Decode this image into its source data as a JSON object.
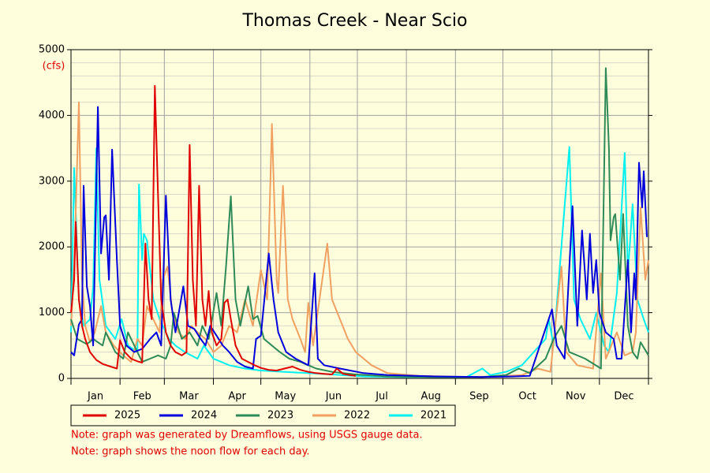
{
  "chart_data": {
    "type": "line",
    "title": "Thomas Creek - Near Scio",
    "y_unit": "(cfs)",
    "xlim": [
      0,
      365
    ],
    "xticks": [
      {
        "value": 15.5,
        "label": "Jan"
      },
      {
        "value": 45,
        "label": "Feb"
      },
      {
        "value": 74.5,
        "label": "Mar"
      },
      {
        "value": 105,
        "label": "Apr"
      },
      {
        "value": 135.5,
        "label": "May"
      },
      {
        "value": 166,
        "label": "Jun"
      },
      {
        "value": 196.5,
        "label": "Jul"
      },
      {
        "value": 227.5,
        "label": "Aug"
      },
      {
        "value": 258,
        "label": "Sep"
      },
      {
        "value": 288.5,
        "label": "Oct"
      },
      {
        "value": 319,
        "label": "Nov"
      },
      {
        "value": 349.5,
        "label": "Dec"
      }
    ],
    "x_gridlines": [
      0,
      31,
      59,
      90,
      120,
      151,
      181,
      212,
      243,
      273,
      304,
      334,
      365
    ],
    "ylim": [
      0,
      5000
    ],
    "yticks": [
      0,
      1000,
      2000,
      3000,
      4000,
      5000
    ],
    "y_minor_ticks": [
      200,
      400,
      600,
      800,
      1200,
      1400,
      1600,
      1800,
      2200,
      2400,
      2600,
      2800,
      3200,
      3400,
      3600,
      3800,
      4200,
      4400,
      4600,
      4800
    ],
    "grid": true,
    "series": [
      {
        "name": "2025",
        "color": "#e00000",
        "x": [
          0,
          2,
          3,
          5,
          7,
          9,
          12,
          16,
          20,
          25,
          29,
          31,
          34,
          38,
          42,
          45,
          47,
          49,
          51,
          53,
          55,
          57,
          60,
          63,
          66,
          70,
          73,
          75,
          77,
          79,
          81,
          83,
          85,
          87,
          89,
          92,
          95,
          97,
          99,
          101,
          104,
          108,
          112,
          116,
          120,
          125,
          130,
          135,
          140,
          145,
          150,
          155,
          160,
          165,
          168,
          172,
          176,
          180
        ],
        "values": [
          1000,
          1500,
          2380,
          1200,
          800,
          600,
          400,
          280,
          220,
          180,
          150,
          580,
          400,
          300,
          260,
          240,
          2050,
          1200,
          900,
          4450,
          2800,
          1200,
          700,
          500,
          400,
          350,
          400,
          3550,
          1500,
          800,
          2930,
          1200,
          800,
          1330,
          700,
          500,
          600,
          1150,
          1200,
          900,
          500,
          300,
          250,
          200,
          160,
          130,
          120,
          150,
          180,
          130,
          100,
          80,
          70,
          60,
          150,
          70,
          50,
          40
        ]
      },
      {
        "name": "2024",
        "color": "#0000dd",
        "x": [
          0,
          2,
          5,
          7,
          8,
          10,
          12,
          14,
          17,
          19,
          21,
          22,
          24,
          26,
          29,
          31,
          35,
          40,
          45,
          50,
          54,
          57,
          60,
          63,
          66,
          71,
          74,
          78,
          82,
          85,
          88,
          92,
          96,
          100,
          105,
          110,
          115,
          117,
          120,
          125,
          128,
          131,
          136,
          142,
          150,
          154,
          156,
          160,
          170,
          185,
          200,
          230,
          260,
          280,
          290,
          304,
          307,
          312,
          317,
          320,
          323,
          326,
          328,
          330,
          332,
          334,
          338,
          343,
          345,
          348,
          352,
          354,
          356,
          357,
          359,
          361,
          362,
          364
        ],
        "values": [
          400,
          350,
          820,
          900,
          2930,
          1400,
          1100,
          500,
          4130,
          1900,
          2450,
          2480,
          1500,
          3480,
          1800,
          800,
          500,
          400,
          450,
          600,
          700,
          500,
          2780,
          1200,
          700,
          1400,
          800,
          750,
          600,
          500,
          800,
          650,
          500,
          400,
          250,
          180,
          150,
          600,
          650,
          1900,
          1200,
          700,
          400,
          300,
          200,
          1600,
          300,
          200,
          150,
          80,
          50,
          30,
          20,
          30,
          40,
          1050,
          500,
          300,
          2620,
          800,
          2250,
          1200,
          2200,
          1300,
          1800,
          1000,
          700,
          600,
          300,
          300,
          1800,
          700,
          1600,
          1200,
          3280,
          2600,
          3150,
          2150
        ]
      },
      {
        "name": "2023",
        "color": "#2e8b57",
        "x": [
          0,
          4,
          10,
          14,
          20,
          22,
          28,
          33,
          36,
          40,
          45,
          50,
          55,
          60,
          63,
          65,
          70,
          75,
          80,
          83,
          87,
          92,
          95,
          98,
          101,
          104,
          107,
          112,
          115,
          118,
          122,
          127,
          132,
          138,
          145,
          155,
          165,
          180,
          200,
          230,
          260,
          275,
          283,
          290,
          300,
          305,
          310,
          315,
          325,
          335,
          338,
          340,
          341,
          343,
          344,
          347,
          349,
          352,
          355,
          358,
          360,
          365
        ],
        "values": [
          900,
          600,
          520,
          600,
          500,
          700,
          400,
          300,
          700,
          500,
          250,
          300,
          350,
          300,
          500,
          1000,
          600,
          700,
          500,
          800,
          600,
          1300,
          800,
          1700,
          2770,
          1200,
          800,
          1400,
          900,
          950,
          600,
          500,
          400,
          300,
          250,
          150,
          100,
          60,
          30,
          20,
          20,
          50,
          150,
          80,
          300,
          600,
          800,
          400,
          300,
          150,
          4720,
          3500,
          2100,
          2450,
          2500,
          1500,
          2500,
          800,
          400,
          300,
          550,
          350
        ]
      },
      {
        "name": "2022",
        "color": "#f0a060",
        "x": [
          0,
          2,
          5,
          7,
          9,
          12,
          15,
          19,
          22,
          27,
          33,
          38,
          42,
          45,
          48,
          52,
          56,
          58,
          61,
          64,
          68,
          72,
          76,
          80,
          85,
          90,
          95,
          100,
          105,
          110,
          115,
          120,
          124,
          127,
          130,
          131,
          134,
          137,
          140,
          145,
          148,
          150,
          153,
          162,
          165,
          170,
          175,
          180,
          190,
          200,
          220,
          250,
          270,
          285,
          295,
          303,
          310,
          313,
          320,
          330,
          335,
          338,
          345,
          350,
          355,
          357,
          360,
          363,
          365
        ],
        "values": [
          800,
          1700,
          4200,
          1500,
          800,
          550,
          700,
          1100,
          700,
          500,
          350,
          250,
          600,
          500,
          1100,
          900,
          700,
          1500,
          1700,
          1000,
          700,
          600,
          800,
          700,
          600,
          400,
          500,
          800,
          700,
          1200,
          800,
          1650,
          1200,
          3870,
          1500,
          1300,
          2930,
          1200,
          900,
          600,
          400,
          1150,
          500,
          2050,
          1200,
          900,
          600,
          400,
          200,
          80,
          40,
          20,
          30,
          50,
          150,
          100,
          1700,
          400,
          200,
          150,
          1600,
          300,
          700,
          350,
          400,
          700,
          2600,
          1500,
          1800
        ]
      },
      {
        "name": "2021",
        "color": "#00f0f0",
        "x": [
          0,
          2,
          5,
          8,
          12,
          14,
          16,
          18,
          22,
          28,
          32,
          36,
          42,
          43,
          45,
          46,
          48,
          52,
          56,
          58,
          62,
          66,
          72,
          80,
          84,
          90,
          95,
          100,
          110,
          120,
          135,
          150,
          165,
          185,
          210,
          250,
          260,
          265,
          275,
          285,
          300,
          302,
          305,
          315,
          318,
          322,
          328,
          332,
          337,
          340,
          345,
          350,
          352,
          355,
          358,
          362,
          365
        ],
        "values": [
          700,
          3200,
          1200,
          800,
          900,
          1400,
          3500,
          1500,
          800,
          600,
          900,
          500,
          400,
          2950,
          1800,
          2200,
          2100,
          1200,
          900,
          800,
          600,
          500,
          400,
          300,
          500,
          300,
          250,
          200,
          150,
          120,
          100,
          80,
          60,
          30,
          20,
          20,
          150,
          50,
          100,
          200,
          600,
          900,
          500,
          3520,
          1200,
          900,
          600,
          1000,
          500,
          400,
          1300,
          3430,
          1600,
          2650,
          1200,
          900,
          700
        ]
      }
    ],
    "notes": [
      "Note: graph was generated by Dreamflows, using USGS gauge data.",
      "Note: graph shows the noon flow for each day."
    ]
  }
}
